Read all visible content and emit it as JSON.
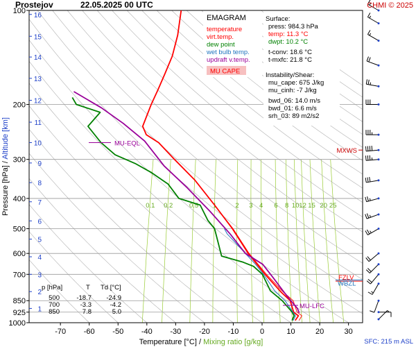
{
  "header": {
    "station": "Prostejov",
    "datetime": "22.05.2025 00 UTC",
    "copyright": "CHMI © 2025"
  },
  "legend": {
    "title": "EMAGRAM",
    "items": [
      {
        "label": "temperature",
        "color": "#ff0000"
      },
      {
        "label": "virt.temp.",
        "color": "#ff0000"
      },
      {
        "label": "dew point",
        "color": "#008000"
      },
      {
        "label": "wet bulb temp.",
        "color": "#1e73be"
      },
      {
        "label": "updraft v.temp.",
        "color": "#990099"
      }
    ],
    "cape_label": "MU CAPE",
    "cape_fill": "#f7c0c0"
  },
  "surface": {
    "title": "Surface:",
    "lines": [
      {
        "label": "press:",
        "value": "984.3 hPa",
        "color": "#000000"
      },
      {
        "label": "temp:",
        "value": "11.3 °C",
        "color": "#ff0000"
      },
      {
        "label": "dwpt:",
        "value": "10.2 °C",
        "color": "#008000"
      },
      {
        "label": "t-conv:",
        "value": "18.6 °C",
        "color": "#000000"
      },
      {
        "label": "t-mxfc:",
        "value": "21.8 °C",
        "color": "#000000"
      }
    ]
  },
  "instability": {
    "title": "Instability/Shear:",
    "lines": [
      "mu_cape: 675 J/kg",
      "mu_cinh: -7 J/kg",
      "bwd_06: 14.0 m/s",
      "bwd_01: 6.6 m/s",
      "srh_03: 89 m2/s2"
    ]
  },
  "levels_table": {
    "headers": [
      "p [hPa]",
      "T",
      "Td [°C]"
    ],
    "rows": [
      [
        "500",
        "-18.7",
        "-24.9"
      ],
      [
        "700",
        "-3.3",
        "-4.2"
      ],
      [
        "850",
        "7.8",
        "5.0"
      ]
    ]
  },
  "annotations": {
    "mu_eql": "MU-EQL",
    "mu_lfc": "MU-LFC",
    "mxws": "MXWS",
    "fzlv": "FZLV",
    "wbzl": "WBZL",
    "sfc": "SFC: 215 m ASL"
  },
  "colors": {
    "temperature": "#ff0000",
    "dewpoint": "#008000",
    "wetbulb": "#1e73be",
    "parcel": "#990099",
    "mixing_ratio": "#99cc33",
    "dry_adiabat": "#b0b0b0",
    "isobar": "#999999",
    "wind": "#000000",
    "mxws": "#cc0000",
    "altitude_axis": "#1e40c8"
  },
  "chart_data": {
    "type": "line",
    "title": "Prostejov 22.05.2025 00 UTC",
    "xlabel": "Temperature [°C]",
    "xlabel_extra": "Mixing ratio [g/kg]",
    "ylabel": "Pressure [hPa]",
    "ylabel_extra": "Altitude [km]",
    "xlim": [
      -80,
      40
    ],
    "ylim": [
      1000,
      100
    ],
    "y_scale": "log",
    "grid": true,
    "x_ticks": [
      -70,
      -60,
      -50,
      -40,
      -30,
      -20,
      -10,
      0,
      10,
      20,
      30
    ],
    "pressure_ticks": [
      100,
      200,
      300,
      400,
      500,
      600,
      700,
      850,
      925,
      1000
    ],
    "altitude_ticks": [
      {
        "km": 1,
        "p": 900
      },
      {
        "km": 2,
        "p": 795
      },
      {
        "km": 3,
        "p": 700
      },
      {
        "km": 4,
        "p": 615
      },
      {
        "km": 5,
        "p": 540
      },
      {
        "km": 6,
        "p": 472
      },
      {
        "km": 7,
        "p": 410
      },
      {
        "km": 8,
        "p": 356
      },
      {
        "km": 9,
        "p": 308
      },
      {
        "km": 10,
        "p": 265
      },
      {
        "km": 11,
        "p": 228
      },
      {
        "km": 12,
        "p": 194
      },
      {
        "km": 13,
        "p": 165
      },
      {
        "km": 14,
        "p": 141
      },
      {
        "km": 15,
        "p": 121
      },
      {
        "km": 16,
        "p": 103
      }
    ],
    "mixing_ratio_labels": [
      "0.1",
      "0.2",
      "0.5",
      "1",
      "2",
      "3",
      "4",
      "6",
      "8",
      "10",
      "12",
      "15",
      "20",
      "25"
    ],
    "mixing_ratio_values": [
      0.1,
      0.2,
      0.5,
      1,
      2,
      3,
      4,
      6,
      8,
      10,
      12,
      15,
      20,
      25
    ],
    "series": [
      {
        "name": "temperature",
        "points": [
          [
            11.3,
            984
          ],
          [
            12,
            950
          ],
          [
            10,
            925
          ],
          [
            7.8,
            850
          ],
          [
            4,
            800
          ],
          [
            -3.3,
            700
          ],
          [
            -7,
            650
          ],
          [
            -11,
            600
          ],
          [
            -18.7,
            500
          ],
          [
            -27,
            420
          ],
          [
            -36,
            350
          ],
          [
            -45,
            300
          ],
          [
            -52,
            265
          ],
          [
            -57,
            250
          ],
          [
            -59,
            235
          ],
          [
            -58,
            200
          ],
          [
            -57,
            180
          ],
          [
            -56,
            160
          ],
          [
            -55,
            140
          ],
          [
            -55,
            120
          ],
          [
            -56,
            100
          ]
        ]
      },
      {
        "name": "virt.temp.",
        "points": [
          [
            12.6,
            984
          ],
          [
            13.2,
            950
          ],
          [
            11.2,
            925
          ],
          [
            8.8,
            850
          ],
          [
            4.8,
            800
          ],
          [
            -2.8,
            700
          ],
          [
            -6.6,
            650
          ],
          [
            -10.7,
            600
          ],
          [
            -18.5,
            500
          ],
          [
            -27,
            420
          ],
          [
            -36,
            350
          ],
          [
            -45,
            300
          ],
          [
            -52,
            265
          ],
          [
            -57,
            250
          ]
        ]
      },
      {
        "name": "dew point",
        "points": [
          [
            10.2,
            984
          ],
          [
            10.5,
            950
          ],
          [
            9.5,
            925
          ],
          [
            5,
            850
          ],
          [
            0,
            790
          ],
          [
            -4.2,
            700
          ],
          [
            -8,
            660
          ],
          [
            -12,
            640
          ],
          [
            -20,
            612
          ],
          [
            -24.9,
            500
          ],
          [
            -28,
            470
          ],
          [
            -32,
            420
          ],
          [
            -40,
            400
          ],
          [
            -45,
            360
          ],
          [
            -52,
            330
          ],
          [
            -58,
            310
          ],
          [
            -66,
            290
          ],
          [
            -72,
            265
          ],
          [
            -78,
            235
          ],
          [
            -75,
            212
          ],
          [
            -84,
            200
          ],
          [
            -86,
            190
          ]
        ]
      },
      {
        "name": "wet bulb temp.",
        "points": [
          [
            10.6,
            984
          ],
          [
            11,
            950
          ],
          [
            9.8,
            925
          ],
          [
            6,
            850
          ],
          [
            1.5,
            790
          ],
          [
            -3.8,
            700
          ],
          [
            -7.5,
            650
          ],
          [
            -12,
            600
          ],
          [
            -20,
            520
          ],
          [
            -21.5,
            500
          ]
        ]
      },
      {
        "name": "updraft v.temp.",
        "points": [
          [
            12,
            930
          ],
          [
            11,
            900
          ],
          [
            8,
            850
          ],
          [
            5,
            800
          ],
          [
            0,
            720
          ],
          [
            -5,
            650
          ],
          [
            -12,
            600
          ],
          [
            -19,
            520
          ],
          [
            -28,
            440
          ],
          [
            -38,
            370
          ],
          [
            -48,
            315
          ],
          [
            -57,
            262
          ],
          [
            -66,
            230
          ],
          [
            -75,
            205
          ],
          [
            -86,
            182
          ]
        ]
      }
    ],
    "wind_barbs": [
      {
        "p": 975,
        "dir": 45,
        "speed": 5
      },
      {
        "p": 925,
        "dir": 90,
        "speed": 10
      },
      {
        "p": 850,
        "dir": 200,
        "speed": 10
      },
      {
        "p": 750,
        "dir": 210,
        "speed": 15
      },
      {
        "p": 700,
        "dir": 220,
        "speed": 20
      },
      {
        "p": 650,
        "dir": 225,
        "speed": 20
      },
      {
        "p": 600,
        "dir": 230,
        "speed": 20
      },
      {
        "p": 500,
        "dir": 240,
        "speed": 25
      },
      {
        "p": 450,
        "dir": 250,
        "speed": 25
      },
      {
        "p": 400,
        "dir": 255,
        "speed": 25
      },
      {
        "p": 350,
        "dir": 260,
        "speed": 30
      },
      {
        "p": 300,
        "dir": 265,
        "speed": 35
      },
      {
        "p": 280,
        "dir": 265,
        "speed": 40
      },
      {
        "p": 250,
        "dir": 270,
        "speed": 35
      },
      {
        "p": 200,
        "dir": 270,
        "speed": 30
      },
      {
        "p": 175,
        "dir": 280,
        "speed": 25
      },
      {
        "p": 150,
        "dir": 290,
        "speed": 20
      },
      {
        "p": 125,
        "dir": 300,
        "speed": 15
      },
      {
        "p": 110,
        "dir": 300,
        "speed": 15
      },
      {
        "p": 100,
        "dir": 300,
        "speed": 15
      }
    ],
    "level_markers": {
      "mu_eql_p": 265,
      "mu_lfc_p": 880,
      "mxws_p": 280,
      "fzlv_p": 725,
      "wbzl_p": 745
    }
  }
}
